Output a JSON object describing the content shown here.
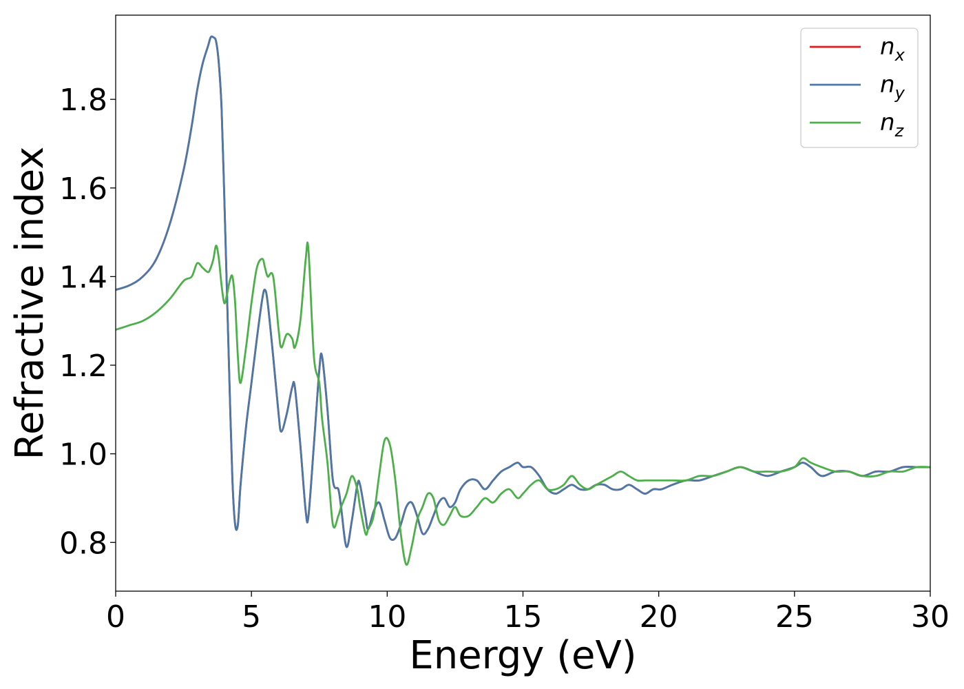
{
  "chart_data": {
    "type": "line",
    "xlabel": "Energy (eV)",
    "ylabel": "Refractive index",
    "xlim": [
      0,
      30
    ],
    "ylim": [
      0.69,
      1.99
    ],
    "xticks": [
      "0",
      "5",
      "10",
      "15",
      "20",
      "25",
      "30"
    ],
    "yticks": [
      "0.8",
      "1.0",
      "1.2",
      "1.4",
      "1.6",
      "1.8"
    ],
    "legend_position": "top-right",
    "grid": false,
    "series": [
      {
        "name": "n_x",
        "label_base": "n",
        "label_sub": "x",
        "color": "#e41a1c",
        "x": [
          0,
          0.5,
          1,
          1.5,
          2,
          2.5,
          2.8,
          3.0,
          3.2,
          3.4,
          3.5,
          3.6,
          3.7,
          3.8,
          3.9,
          4.0,
          4.1,
          4.2,
          4.3,
          4.4,
          4.5,
          4.6,
          4.8,
          5.0,
          5.2,
          5.4,
          5.5,
          5.6,
          5.8,
          6.0,
          6.1,
          6.3,
          6.5,
          6.6,
          6.8,
          7.0,
          7.1,
          7.3,
          7.5,
          7.6,
          7.8,
          8.0,
          8.2,
          8.3,
          8.5,
          8.7,
          8.9,
          9.0,
          9.2,
          9.3,
          9.5,
          9.7,
          9.9,
          10.1,
          10.3,
          10.5,
          10.7,
          10.9,
          11.1,
          11.3,
          11.5,
          11.7,
          11.9,
          12.1,
          12.3,
          12.5,
          12.7,
          13.0,
          13.3,
          13.6,
          13.9,
          14.2,
          14.5,
          14.8,
          15.0,
          15.3,
          15.6,
          15.9,
          16.2,
          16.5,
          16.8,
          17.1,
          17.4,
          17.7,
          18.0,
          18.3,
          18.6,
          18.9,
          19.2,
          19.5,
          19.8,
          20.1,
          20.5,
          21.0,
          21.5,
          22.0,
          22.5,
          23.0,
          23.5,
          24.0,
          24.5,
          25.0,
          25.3,
          25.6,
          26.0,
          26.5,
          27.0,
          27.5,
          28.0,
          28.5,
          29.0,
          29.5,
          30.0
        ],
        "y": [
          1.37,
          1.38,
          1.4,
          1.44,
          1.52,
          1.64,
          1.74,
          1.82,
          1.88,
          1.92,
          1.94,
          1.94,
          1.93,
          1.88,
          1.78,
          1.58,
          1.36,
          1.14,
          0.94,
          0.84,
          0.84,
          0.93,
          1.06,
          1.16,
          1.26,
          1.35,
          1.37,
          1.34,
          1.22,
          1.09,
          1.05,
          1.09,
          1.15,
          1.15,
          1.02,
          0.87,
          0.86,
          1.02,
          1.19,
          1.22,
          1.1,
          0.94,
          0.92,
          0.88,
          0.79,
          0.85,
          0.93,
          0.93,
          0.86,
          0.83,
          0.87,
          0.89,
          0.85,
          0.81,
          0.81,
          0.84,
          0.88,
          0.89,
          0.86,
          0.82,
          0.83,
          0.86,
          0.89,
          0.9,
          0.88,
          0.89,
          0.92,
          0.94,
          0.94,
          0.92,
          0.94,
          0.96,
          0.97,
          0.98,
          0.97,
          0.97,
          0.95,
          0.92,
          0.91,
          0.92,
          0.93,
          0.92,
          0.92,
          0.93,
          0.93,
          0.92,
          0.92,
          0.93,
          0.92,
          0.91,
          0.92,
          0.92,
          0.93,
          0.94,
          0.94,
          0.95,
          0.96,
          0.97,
          0.96,
          0.95,
          0.96,
          0.97,
          0.98,
          0.97,
          0.95,
          0.96,
          0.96,
          0.95,
          0.96,
          0.96,
          0.97,
          0.97,
          0.97
        ]
      },
      {
        "name": "n_y",
        "label_base": "n",
        "label_sub": "y",
        "color": "#4a78a8",
        "x": [
          0,
          0.5,
          1,
          1.5,
          2,
          2.5,
          2.8,
          3.0,
          3.2,
          3.4,
          3.5,
          3.6,
          3.7,
          3.8,
          3.9,
          4.0,
          4.1,
          4.2,
          4.3,
          4.4,
          4.5,
          4.6,
          4.8,
          5.0,
          5.2,
          5.4,
          5.5,
          5.6,
          5.8,
          6.0,
          6.1,
          6.3,
          6.5,
          6.6,
          6.8,
          7.0,
          7.1,
          7.3,
          7.5,
          7.6,
          7.8,
          8.0,
          8.2,
          8.3,
          8.5,
          8.7,
          8.9,
          9.0,
          9.2,
          9.3,
          9.5,
          9.7,
          9.9,
          10.1,
          10.3,
          10.5,
          10.7,
          10.9,
          11.1,
          11.3,
          11.5,
          11.7,
          11.9,
          12.1,
          12.3,
          12.5,
          12.7,
          13.0,
          13.3,
          13.6,
          13.9,
          14.2,
          14.5,
          14.8,
          15.0,
          15.3,
          15.6,
          15.9,
          16.2,
          16.5,
          16.8,
          17.1,
          17.4,
          17.7,
          18.0,
          18.3,
          18.6,
          18.9,
          19.2,
          19.5,
          19.8,
          20.1,
          20.5,
          21.0,
          21.5,
          22.0,
          22.5,
          23.0,
          23.5,
          24.0,
          24.5,
          25.0,
          25.3,
          25.6,
          26.0,
          26.5,
          27.0,
          27.5,
          28.0,
          28.5,
          29.0,
          29.5,
          30.0
        ],
        "y": [
          1.37,
          1.38,
          1.4,
          1.44,
          1.52,
          1.64,
          1.74,
          1.82,
          1.88,
          1.92,
          1.94,
          1.94,
          1.93,
          1.88,
          1.78,
          1.58,
          1.36,
          1.14,
          0.94,
          0.84,
          0.84,
          0.93,
          1.06,
          1.16,
          1.26,
          1.35,
          1.37,
          1.34,
          1.22,
          1.09,
          1.05,
          1.09,
          1.15,
          1.15,
          1.02,
          0.87,
          0.86,
          1.02,
          1.19,
          1.22,
          1.1,
          0.94,
          0.92,
          0.88,
          0.79,
          0.85,
          0.93,
          0.93,
          0.86,
          0.83,
          0.87,
          0.89,
          0.85,
          0.81,
          0.81,
          0.84,
          0.88,
          0.89,
          0.86,
          0.82,
          0.83,
          0.86,
          0.89,
          0.9,
          0.88,
          0.89,
          0.92,
          0.94,
          0.94,
          0.92,
          0.94,
          0.96,
          0.97,
          0.98,
          0.97,
          0.97,
          0.95,
          0.92,
          0.91,
          0.92,
          0.93,
          0.92,
          0.92,
          0.93,
          0.93,
          0.92,
          0.92,
          0.93,
          0.92,
          0.91,
          0.92,
          0.92,
          0.93,
          0.94,
          0.94,
          0.95,
          0.96,
          0.97,
          0.96,
          0.95,
          0.96,
          0.97,
          0.98,
          0.97,
          0.95,
          0.96,
          0.96,
          0.95,
          0.96,
          0.96,
          0.97,
          0.97,
          0.97
        ]
      },
      {
        "name": "n_z",
        "label_base": "n",
        "label_sub": "z",
        "color": "#4daf4a",
        "x": [
          0,
          0.5,
          1,
          1.5,
          2,
          2.5,
          2.8,
          3.0,
          3.2,
          3.4,
          3.5,
          3.6,
          3.7,
          3.8,
          3.9,
          4.0,
          4.1,
          4.2,
          4.3,
          4.4,
          4.5,
          4.6,
          4.8,
          5.0,
          5.2,
          5.4,
          5.5,
          5.6,
          5.8,
          6.0,
          6.1,
          6.3,
          6.5,
          6.6,
          6.8,
          7.0,
          7.1,
          7.3,
          7.5,
          7.6,
          7.8,
          8.0,
          8.2,
          8.3,
          8.5,
          8.7,
          8.9,
          9.0,
          9.2,
          9.3,
          9.5,
          9.7,
          9.9,
          10.1,
          10.3,
          10.5,
          10.7,
          10.9,
          11.1,
          11.3,
          11.5,
          11.7,
          11.9,
          12.1,
          12.3,
          12.5,
          12.7,
          13.0,
          13.3,
          13.6,
          13.9,
          14.2,
          14.5,
          14.8,
          15.0,
          15.3,
          15.6,
          15.9,
          16.2,
          16.5,
          16.8,
          17.1,
          17.4,
          17.7,
          18.0,
          18.3,
          18.6,
          18.9,
          19.2,
          19.5,
          19.8,
          20.1,
          20.5,
          21.0,
          21.5,
          22.0,
          22.5,
          23.0,
          23.5,
          24.0,
          24.5,
          25.0,
          25.3,
          25.6,
          26.0,
          26.5,
          27.0,
          27.5,
          28.0,
          28.5,
          29.0,
          29.5,
          30.0
        ],
        "y": [
          1.28,
          1.29,
          1.3,
          1.32,
          1.35,
          1.39,
          1.4,
          1.43,
          1.42,
          1.41,
          1.42,
          1.44,
          1.47,
          1.44,
          1.38,
          1.34,
          1.36,
          1.39,
          1.4,
          1.34,
          1.22,
          1.16,
          1.24,
          1.34,
          1.42,
          1.44,
          1.42,
          1.4,
          1.4,
          1.28,
          1.24,
          1.27,
          1.26,
          1.24,
          1.3,
          1.44,
          1.46,
          1.22,
          1.16,
          1.08,
          0.98,
          0.84,
          0.86,
          0.88,
          0.91,
          0.95,
          0.92,
          0.88,
          0.82,
          0.83,
          0.86,
          0.95,
          1.03,
          1.02,
          0.94,
          0.82,
          0.75,
          0.79,
          0.85,
          0.88,
          0.91,
          0.9,
          0.85,
          0.84,
          0.86,
          0.88,
          0.86,
          0.86,
          0.88,
          0.9,
          0.89,
          0.91,
          0.92,
          0.9,
          0.91,
          0.93,
          0.94,
          0.92,
          0.92,
          0.93,
          0.95,
          0.93,
          0.92,
          0.93,
          0.94,
          0.95,
          0.96,
          0.95,
          0.94,
          0.94,
          0.94,
          0.94,
          0.94,
          0.94,
          0.95,
          0.95,
          0.96,
          0.97,
          0.96,
          0.96,
          0.96,
          0.97,
          0.99,
          0.98,
          0.97,
          0.96,
          0.96,
          0.95,
          0.95,
          0.96,
          0.96,
          0.97,
          0.97
        ]
      }
    ]
  }
}
